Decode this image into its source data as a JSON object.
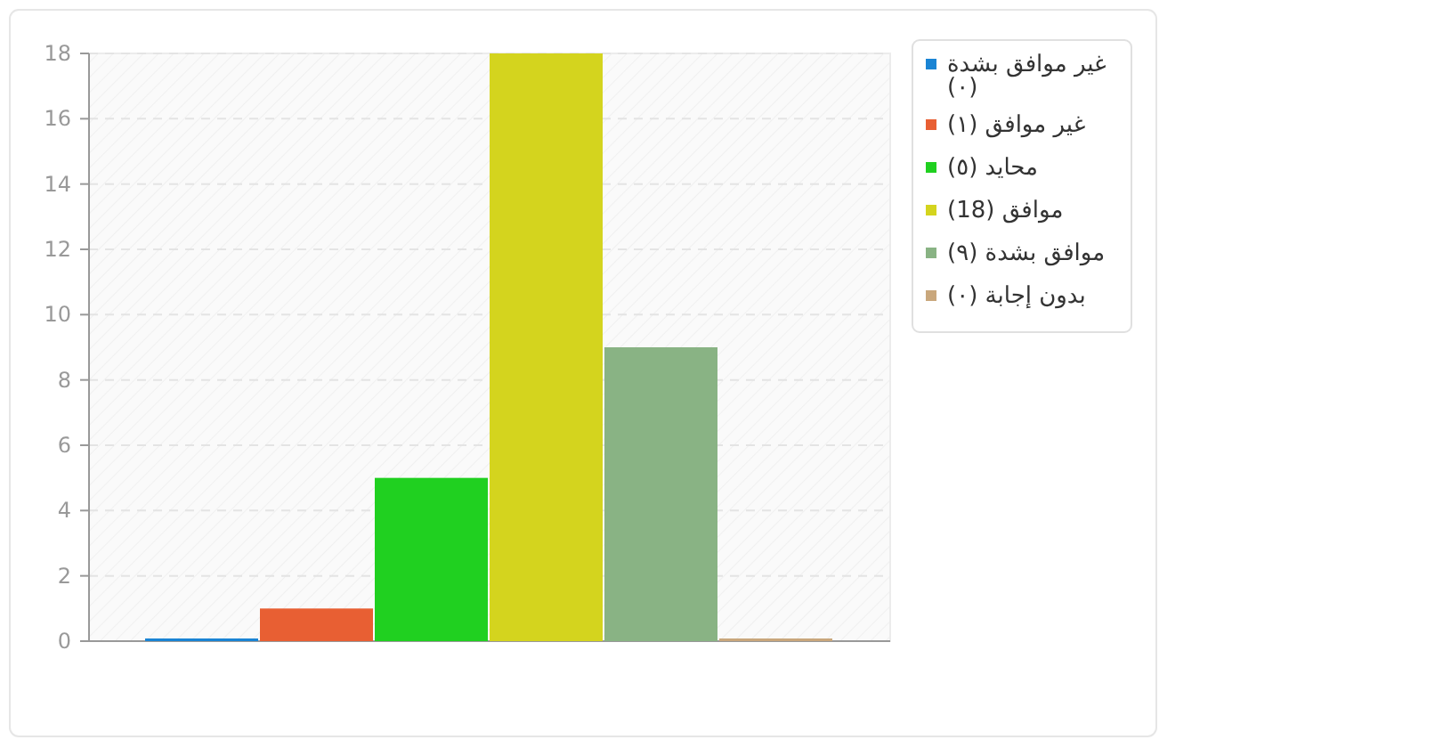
{
  "chart_data": {
    "type": "bar",
    "categories": [
      null
    ],
    "series": [
      {
        "name": "غير موافق بشدة (٠)",
        "color": "#1a84d4",
        "values": [
          0
        ]
      },
      {
        "name": "غير موافق (١)",
        "color": "#e85f33",
        "values": [
          1
        ]
      },
      {
        "name": "محايد (٥)",
        "color": "#20d020",
        "values": [
          5
        ]
      },
      {
        "name": "موافق (18)",
        "color": "#d4d41e",
        "values": [
          18
        ]
      },
      {
        "name": "موافق بشدة (٩)",
        "color": "#89b384",
        "values": [
          9
        ]
      },
      {
        "name": "بدون إجابة (٠)",
        "color": "#c9a77c",
        "values": [
          0
        ]
      }
    ],
    "ylim": [
      0,
      18
    ],
    "yticks": [
      0,
      2,
      4,
      6,
      8,
      10,
      12,
      14,
      16,
      18
    ],
    "grid": "y",
    "legend": "right"
  }
}
